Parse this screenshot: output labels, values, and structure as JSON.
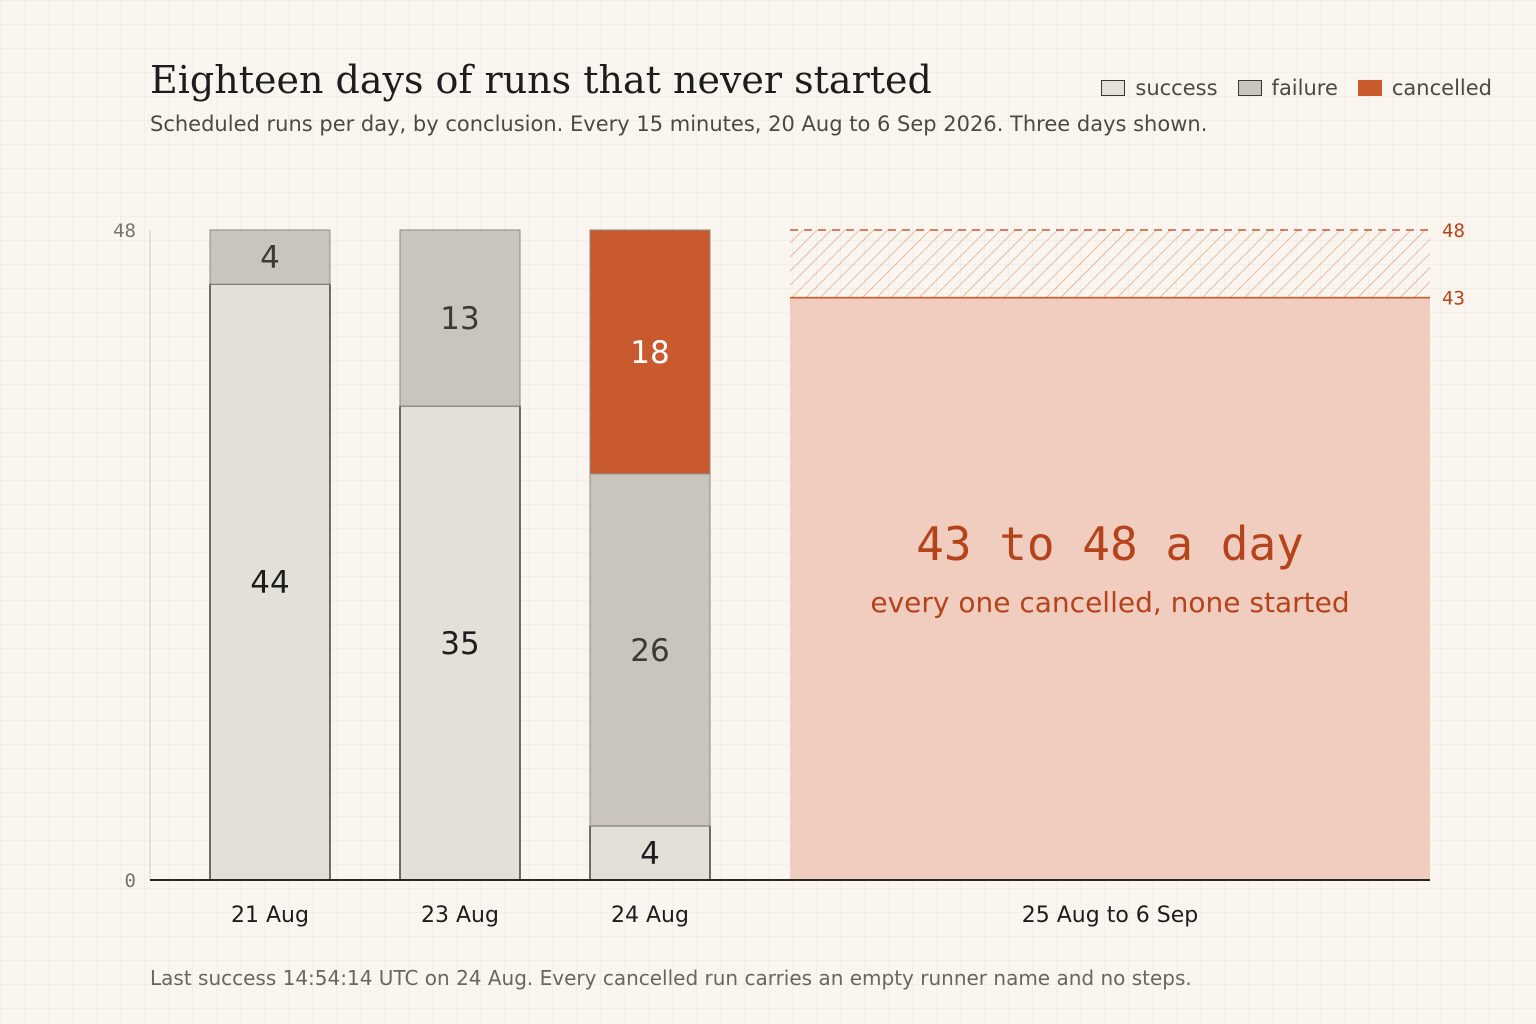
{
  "header": {
    "title": "Eighteen days of runs that never started",
    "subtitle": "Scheduled runs per day, by conclusion. Every 15 minutes, 20 Aug to 6 Sep 2026. Three days shown."
  },
  "legend": [
    {
      "label": "success",
      "color": "#e3e0d8"
    },
    {
      "label": "failure",
      "color": "#c9c5bd"
    },
    {
      "label": "cancelled",
      "color": "#c85a2e"
    }
  ],
  "colors": {
    "success": "#e3e0d8",
    "failure": "#c9c5bd",
    "cancelled": "#c85a2e",
    "cancelled_range_fill": "#f0cdbf",
    "cancelled_text": "#b5431c"
  },
  "chart_data": {
    "type": "bar",
    "stacked": true,
    "categories": [
      "21 Aug",
      "23 Aug",
      "24 Aug"
    ],
    "series": [
      {
        "name": "success",
        "values": [
          44,
          35,
          4
        ]
      },
      {
        "name": "failure",
        "values": [
          4,
          13,
          26
        ]
      },
      {
        "name": "cancelled",
        "values": [
          0,
          0,
          18
        ]
      }
    ],
    "y_ticks": [
      "0",
      "48"
    ],
    "ylim": [
      0,
      48
    ],
    "range_block": {
      "label": "25 Aug to 6 Sep",
      "low": 43,
      "high": 48,
      "low_label": "43",
      "high_label": "48",
      "headline": "43 to 48 a day",
      "caption": "every one cancelled, none started"
    },
    "legend_position": "top-right",
    "grid": false
  },
  "footnote": "Last success 14:54:14 UTC on 24 Aug. Every cancelled run carries an empty runner name and no steps."
}
